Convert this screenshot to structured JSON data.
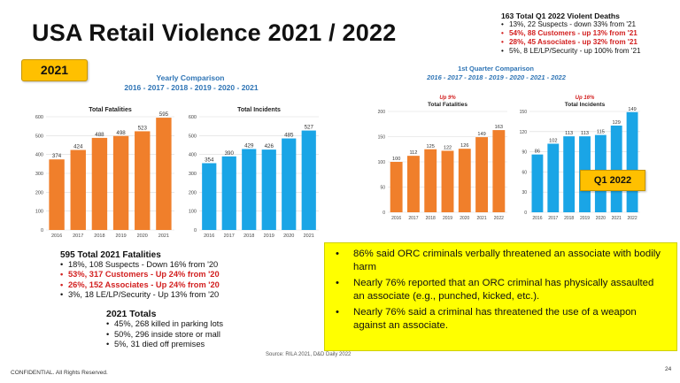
{
  "title": "USA Retail Violence 2021 / 2022",
  "q1_deaths": {
    "heading": "163 Total Q1 2022 Violent Deaths",
    "items": [
      {
        "text": "13%, 22 Suspects - down 33% from '21",
        "red": false
      },
      {
        "text": "54%, 88 Customers - up 13% from '21",
        "red": true
      },
      {
        "text": "28%, 45 Associates - up 32% from '21",
        "red": true
      },
      {
        "text": "5%, 8 LE/LP/Security - up 100% from '21",
        "red": false
      }
    ]
  },
  "badge_2021": "2021",
  "yearly": {
    "title": "Yearly Comparison",
    "years": "2016 - 2017 - 2018 - 2019 - 2020 - 2021"
  },
  "quarter": {
    "title": "1st Quarter Comparison",
    "years": "2016 - 2017 - 2018 - 2019 - 2020 - 2021 - 2022"
  },
  "q1_badge": "Q1 2022",
  "chart_data": [
    {
      "type": "bar",
      "title": "Total Fatalities",
      "categories": [
        "2016",
        "2017",
        "2018",
        "2019",
        "2020",
        "2021"
      ],
      "values": [
        374,
        424,
        488,
        498,
        523,
        595
      ],
      "ylim": [
        0,
        600
      ],
      "yticks": [
        0,
        100,
        200,
        300,
        400,
        500,
        600
      ],
      "color": "#f07f2b",
      "annotation": ""
    },
    {
      "type": "bar",
      "title": "Total Incidents",
      "categories": [
        "2016",
        "2017",
        "2018",
        "2019",
        "2020",
        "2021"
      ],
      "values": [
        354,
        390,
        429,
        426,
        485,
        527
      ],
      "ylim": [
        0,
        600
      ],
      "yticks": [
        0,
        100,
        200,
        300,
        400,
        500,
        600
      ],
      "color": "#1aa5e6",
      "annotation": ""
    },
    {
      "type": "bar",
      "title": "Total Fatalities",
      "categories": [
        "2016",
        "2017",
        "2018",
        "2019",
        "2020",
        "2021",
        "2022"
      ],
      "values": [
        100,
        112,
        125,
        122,
        126,
        149,
        163
      ],
      "ylim": [
        0,
        200
      ],
      "yticks": [
        0,
        50,
        100,
        150,
        200
      ],
      "color": "#f07f2b",
      "annotation": "Up 9%"
    },
    {
      "type": "bar",
      "title": "Total Incidents",
      "categories": [
        "2016",
        "2017",
        "2018",
        "2019",
        "2020",
        "2021",
        "2022"
      ],
      "values": [
        86,
        102,
        113,
        113,
        115,
        129,
        149
      ],
      "ylim": [
        0,
        150
      ],
      "yticks": [
        0,
        30,
        60,
        90,
        120,
        150
      ],
      "color": "#1aa5e6",
      "annotation": "Up 16%"
    }
  ],
  "fatalities_2021": {
    "heading": "595 Total 2021 Fatalities",
    "items": [
      {
        "text": "18%, 108 Suspects - Down 16% from '20",
        "red": false
      },
      {
        "text": "53%, 317 Customers - Up 24% from '20",
        "red": true
      },
      {
        "text": "26%, 152 Associates - Up 24% from '20",
        "red": true
      },
      {
        "text": "3%, 18 LE/LP/Security - Up 13% from '20",
        "red": false
      }
    ]
  },
  "totals_2021": {
    "heading": "2021 Totals",
    "items": [
      "45%, 268 killed in parking lots",
      "50%, 296 inside store or mall",
      "5%, 31 died off premises"
    ]
  },
  "callouts": [
    "86% said ORC criminals verbally threatened an associate with bodily harm",
    "Nearly 76% reported that an ORC criminal has physically assaulted an associate (e.g., punched, kicked, etc.).",
    "Nearly 76% said a criminal has threatened the use of a weapon against an associate."
  ],
  "source": "Source: RILA 2021, D&D Daily 2022",
  "footer": "CONFIDENTIAL. All Rights Reserved.",
  "page_number": "24"
}
